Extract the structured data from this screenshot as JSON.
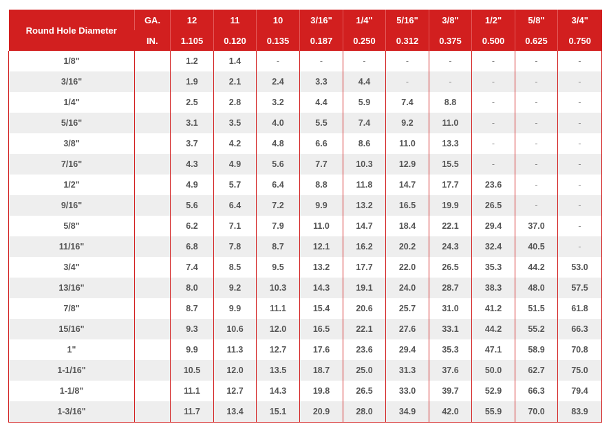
{
  "header": {
    "first_col": "Round Hole Diameter",
    "ga_label": "GA.",
    "in_label": "IN.",
    "gauges": [
      "12",
      "11",
      "10",
      "3/16\"",
      "1/4\"",
      "5/16\"",
      "3/8\"",
      "1/2\"",
      "5/8\"",
      "3/4\""
    ],
    "inches": [
      "1.105",
      "0.120",
      "0.135",
      "0.187",
      "0.250",
      "0.312",
      "0.375",
      "0.500",
      "0.625",
      "0.750"
    ]
  },
  "rows": [
    {
      "d": "1/8\"",
      "v": [
        "1.2",
        "1.4",
        "-",
        "-",
        "-",
        "-",
        "-",
        "-",
        "-",
        "-"
      ]
    },
    {
      "d": "3/16\"",
      "v": [
        "1.9",
        "2.1",
        "2.4",
        "3.3",
        "4.4",
        "-",
        "-",
        "-",
        "-",
        "-"
      ]
    },
    {
      "d": "1/4\"",
      "v": [
        "2.5",
        "2.8",
        "3.2",
        "4.4",
        "5.9",
        "7.4",
        "8.8",
        "-",
        "-",
        "-"
      ]
    },
    {
      "d": "5/16\"",
      "v": [
        "3.1",
        "3.5",
        "4.0",
        "5.5",
        "7.4",
        "9.2",
        "11.0",
        "-",
        "-",
        "-"
      ]
    },
    {
      "d": "3/8\"",
      "v": [
        "3.7",
        "4.2",
        "4.8",
        "6.6",
        "8.6",
        "11.0",
        "13.3",
        "-",
        "-",
        "-"
      ]
    },
    {
      "d": "7/16\"",
      "v": [
        "4.3",
        "4.9",
        "5.6",
        "7.7",
        "10.3",
        "12.9",
        "15.5",
        "-",
        "-",
        "-"
      ]
    },
    {
      "d": "1/2\"",
      "v": [
        "4.9",
        "5.7",
        "6.4",
        "8.8",
        "11.8",
        "14.7",
        "17.7",
        "23.6",
        "-",
        "-"
      ]
    },
    {
      "d": "9/16\"",
      "v": [
        "5.6",
        "6.4",
        "7.2",
        "9.9",
        "13.2",
        "16.5",
        "19.9",
        "26.5",
        "-",
        "-"
      ]
    },
    {
      "d": "5/8\"",
      "v": [
        "6.2",
        "7.1",
        "7.9",
        "11.0",
        "14.7",
        "18.4",
        "22.1",
        "29.4",
        "37.0",
        "-"
      ]
    },
    {
      "d": "11/16\"",
      "v": [
        "6.8",
        "7.8",
        "8.7",
        "12.1",
        "16.2",
        "20.2",
        "24.3",
        "32.4",
        "40.5",
        "-"
      ]
    },
    {
      "d": "3/4\"",
      "v": [
        "7.4",
        "8.5",
        "9.5",
        "13.2",
        "17.7",
        "22.0",
        "26.5",
        "35.3",
        "44.2",
        "53.0"
      ]
    },
    {
      "d": "13/16\"",
      "v": [
        "8.0",
        "9.2",
        "10.3",
        "14.3",
        "19.1",
        "24.0",
        "28.7",
        "38.3",
        "48.0",
        "57.5"
      ]
    },
    {
      "d": "7/8\"",
      "v": [
        "8.7",
        "9.9",
        "11.1",
        "15.4",
        "20.6",
        "25.7",
        "31.0",
        "41.2",
        "51.5",
        "61.8"
      ]
    },
    {
      "d": "15/16\"",
      "v": [
        "9.3",
        "10.6",
        "12.0",
        "16.5",
        "22.1",
        "27.6",
        "33.1",
        "44.2",
        "55.2",
        "66.3"
      ]
    },
    {
      "d": "1\"",
      "v": [
        "9.9",
        "11.3",
        "12.7",
        "17.6",
        "23.6",
        "29.4",
        "35.3",
        "47.1",
        "58.9",
        "70.8"
      ]
    },
    {
      "d": "1-1/16\"",
      "v": [
        "10.5",
        "12.0",
        "13.5",
        "18.7",
        "25.0",
        "31.3",
        "37.6",
        "50.0",
        "62.7",
        "75.0"
      ]
    },
    {
      "d": "1-1/8\"",
      "v": [
        "11.1",
        "12.7",
        "14.3",
        "19.8",
        "26.5",
        "33.0",
        "39.7",
        "52.9",
        "66.3",
        "79.4"
      ]
    },
    {
      "d": "1-3/16\"",
      "v": [
        "11.7",
        "13.4",
        "15.1",
        "20.9",
        "28.0",
        "34.9",
        "42.0",
        "55.9",
        "70.0",
        "83.9"
      ]
    }
  ]
}
